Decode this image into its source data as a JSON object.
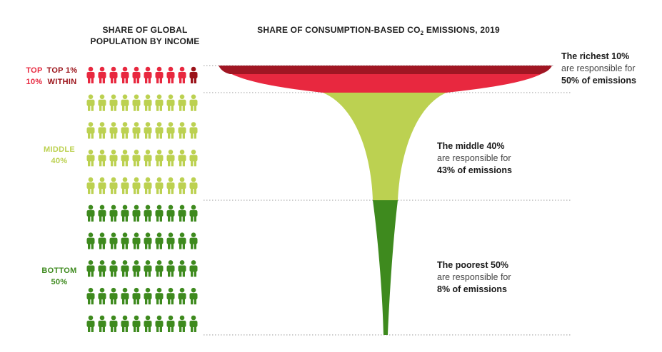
{
  "header": {
    "left_line1": "SHARE OF GLOBAL",
    "left_line2": "POPULATION BY INCOME",
    "right_main": "SHARE OF CONSUMPTION-BASED CO",
    "right_sub": "2",
    "right_tail": " EMISSIONS, 2019"
  },
  "colors": {
    "top": "#e8283f",
    "top_dark": "#a01623",
    "top1": "#9b1219",
    "middle": "#bcd151",
    "bottom": "#3e8a1e",
    "guide": "#9a9a9a"
  },
  "groups": {
    "top": {
      "line1": "TOP",
      "line2": "10%"
    },
    "top1": {
      "line1": "TOP 1%",
      "line2": "WITHIN"
    },
    "middle": {
      "line1": "MIDDLE",
      "line2": "40%"
    },
    "bottom": {
      "line1": "BOTTOM",
      "line2": "50%"
    }
  },
  "annotations": {
    "top": {
      "line1": "The richest 10%",
      "line2": "are responsible for",
      "line3": "50% of emissions"
    },
    "middle": {
      "line1": "The middle 40%",
      "line2": "are responsible for",
      "line3": "43% of emissions"
    },
    "bottom": {
      "line1": "The poorest 50%",
      "line2": "are responsible for",
      "line3": "8% of emissions"
    }
  },
  "chart_data": {
    "type": "pictogram-funnel",
    "title": "SHARE OF CONSUMPTION-BASED CO2 EMISSIONS, 2019",
    "subtitle": "SHARE OF GLOBAL POPULATION BY INCOME",
    "icons_per_row": 10,
    "total_icons": 100,
    "categories": [
      "Top 10%",
      "Middle 40%",
      "Bottom 50%"
    ],
    "population_share": [
      10,
      40,
      50
    ],
    "emissions_share": [
      50,
      43,
      8
    ],
    "highlight": {
      "label": "Top 1% within",
      "icons": 1
    }
  }
}
